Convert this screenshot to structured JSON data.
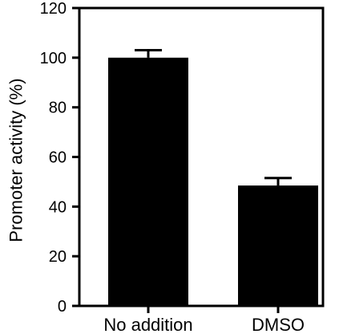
{
  "chart_data": {
    "type": "bar",
    "categories": [
      "No addition",
      "DMSO"
    ],
    "values": [
      100,
      48.5
    ],
    "errors": [
      3,
      3
    ],
    "title": "",
    "xlabel": "",
    "ylabel": "Promoter activity (%)",
    "ylim": [
      0,
      120
    ],
    "yticks": [
      "0",
      "20",
      "40",
      "60",
      "80",
      "100",
      "120"
    ],
    "grid": false,
    "bar_color": "#000000"
  }
}
